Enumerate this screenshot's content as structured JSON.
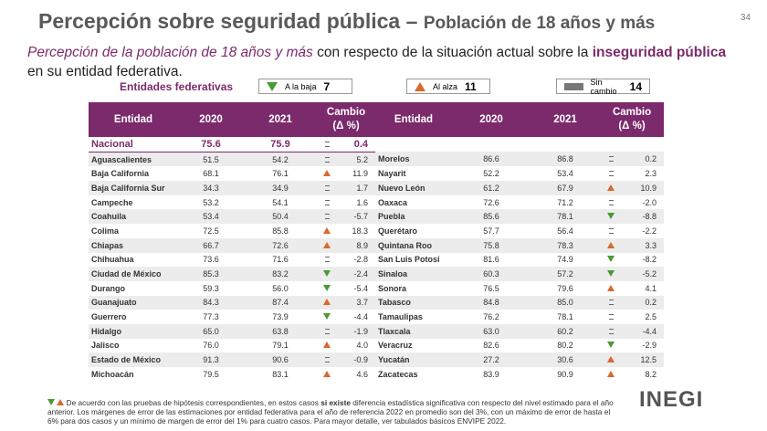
{
  "page_number": "34",
  "title": {
    "main": "Percepción sobre seguridad pública",
    "separator": "–",
    "sub": "Población de 18 años y más"
  },
  "subtitle": {
    "italic": "Percepción de la población de 18 años y más",
    "text1": "con respecto de la situación actual sobre la",
    "bold": "inseguridad pública",
    "text2": "en su entidad federativa."
  },
  "legend": {
    "title": "Entidades federativas",
    "items": [
      {
        "trend": "down",
        "label": "A la baja",
        "count": "7"
      },
      {
        "trend": "up",
        "label": "Al alza",
        "count": "11"
      },
      {
        "trend": "same",
        "label": "Sin cambio",
        "count": "14"
      }
    ]
  },
  "table": {
    "headers": {
      "entity": "Entidad",
      "y2020": "2020",
      "y2021": "2021",
      "change1": "Cambio",
      "change2": "(Δ %)"
    },
    "national": {
      "entity": "Nacional",
      "y2020": "75.6",
      "y2021": "75.9",
      "trend": "same",
      "change": "0.4"
    },
    "left": [
      {
        "entity": "Aguascalientes",
        "y2020": "51.5",
        "y2021": "54.2",
        "trend": "same",
        "change": "5.2"
      },
      {
        "entity": "Baja California",
        "y2020": "68.1",
        "y2021": "76.1",
        "trend": "up",
        "change": "11.9"
      },
      {
        "entity": "Baja California Sur",
        "y2020": "34.3",
        "y2021": "34.9",
        "trend": "same",
        "change": "1.7"
      },
      {
        "entity": "Campeche",
        "y2020": "53.2",
        "y2021": "54.1",
        "trend": "same",
        "change": "1.6"
      },
      {
        "entity": "Coahuila",
        "y2020": "53.4",
        "y2021": "50.4",
        "trend": "same",
        "change": "-5.7"
      },
      {
        "entity": "Colima",
        "y2020": "72.5",
        "y2021": "85.8",
        "trend": "up",
        "change": "18.3"
      },
      {
        "entity": "Chiapas",
        "y2020": "66.7",
        "y2021": "72.6",
        "trend": "up",
        "change": "8.9"
      },
      {
        "entity": "Chihuahua",
        "y2020": "73.6",
        "y2021": "71.6",
        "trend": "same",
        "change": "-2.8"
      },
      {
        "entity": "Ciudad de México",
        "y2020": "85.3",
        "y2021": "83.2",
        "trend": "down",
        "change": "-2.4"
      },
      {
        "entity": "Durango",
        "y2020": "59.3",
        "y2021": "56.0",
        "trend": "down",
        "change": "-5.4"
      },
      {
        "entity": "Guanajuato",
        "y2020": "84.3",
        "y2021": "87.4",
        "trend": "up",
        "change": "3.7"
      },
      {
        "entity": "Guerrero",
        "y2020": "77.3",
        "y2021": "73.9",
        "trend": "down",
        "change": "-4.4"
      },
      {
        "entity": "Hidalgo",
        "y2020": "65.0",
        "y2021": "63.8",
        "trend": "same",
        "change": "-1.9"
      },
      {
        "entity": "Jalisco",
        "y2020": "76.0",
        "y2021": "79.1",
        "trend": "up",
        "change": "4.0"
      },
      {
        "entity": "Estado de México",
        "y2020": "91.3",
        "y2021": "90.6",
        "trend": "same",
        "change": "-0.9"
      },
      {
        "entity": "Michoacán",
        "y2020": "79.5",
        "y2021": "83.1",
        "trend": "up",
        "change": "4.6"
      }
    ],
    "right": [
      {
        "entity": "Morelos",
        "y2020": "86.6",
        "y2021": "86.8",
        "trend": "same",
        "change": "0.2"
      },
      {
        "entity": "Nayarit",
        "y2020": "52.2",
        "y2021": "53.4",
        "trend": "same",
        "change": "2.3"
      },
      {
        "entity": "Nuevo León",
        "y2020": "61.2",
        "y2021": "67.9",
        "trend": "up",
        "change": "10.9"
      },
      {
        "entity": "Oaxaca",
        "y2020": "72.6",
        "y2021": "71.2",
        "trend": "same",
        "change": "-2.0"
      },
      {
        "entity": "Puebla",
        "y2020": "85.6",
        "y2021": "78.1",
        "trend": "down",
        "change": "-8.8"
      },
      {
        "entity": "Querétaro",
        "y2020": "57.7",
        "y2021": "56.4",
        "trend": "same",
        "change": "-2.2"
      },
      {
        "entity": "Quintana Roo",
        "y2020": "75.8",
        "y2021": "78.3",
        "trend": "up",
        "change": "3.3"
      },
      {
        "entity": "San Luis Potosí",
        "y2020": "81.6",
        "y2021": "74.9",
        "trend": "down",
        "change": "-8.2"
      },
      {
        "entity": "Sinaloa",
        "y2020": "60.3",
        "y2021": "57.2",
        "trend": "down",
        "change": "-5.2"
      },
      {
        "entity": "Sonora",
        "y2020": "76.5",
        "y2021": "79.6",
        "trend": "up",
        "change": "4.1"
      },
      {
        "entity": "Tabasco",
        "y2020": "84.8",
        "y2021": "85.0",
        "trend": "same",
        "change": "0.2"
      },
      {
        "entity": "Tamaulipas",
        "y2020": "76.2",
        "y2021": "78.1",
        "trend": "same",
        "change": "2.5"
      },
      {
        "entity": "Tlaxcala",
        "y2020": "63.0",
        "y2021": "60.2",
        "trend": "same",
        "change": "-4.4"
      },
      {
        "entity": "Veracruz",
        "y2020": "82.6",
        "y2021": "80.2",
        "trend": "down",
        "change": "-2.9"
      },
      {
        "entity": "Yucatán",
        "y2020": "27.2",
        "y2021": "30.6",
        "trend": "up",
        "change": "12.5"
      },
      {
        "entity": "Zacatecas",
        "y2020": "83.9",
        "y2021": "90.9",
        "trend": "up",
        "change": "8.2"
      }
    ]
  },
  "footnote": {
    "text1": "De acuerdo con las pruebas de hipótesis correspondientes, en estos casos",
    "bold": "si existe",
    "text2": "diferencia estadística significativa con respecto del nivel estimado para el año anterior. Los márgenes de error de las estimaciones por entidad federativa para el año de referencia 2022 en promedio son del 3%, con un máximo de error de hasta el 6% para dos casos y un mínimo de margen de error del 1% para cuatro casos. Para mayor detalle, ver tabulados básicos ENVIPE 2022."
  },
  "logo": "INEGI"
}
